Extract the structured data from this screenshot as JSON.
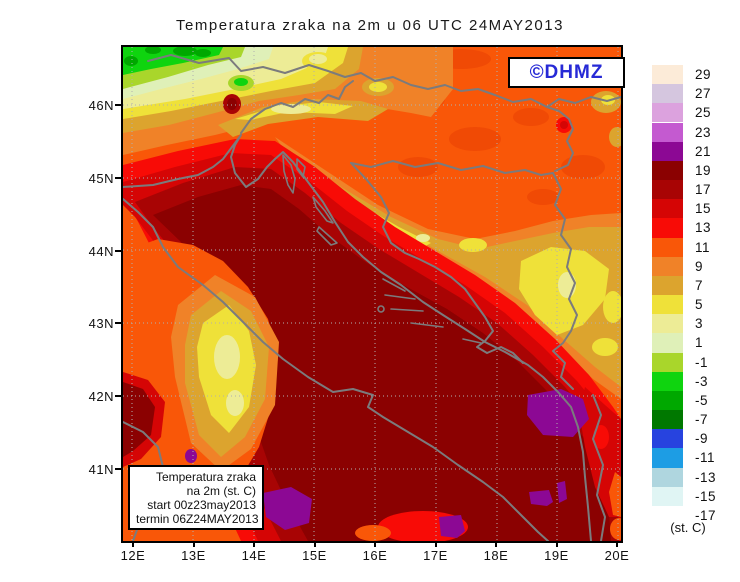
{
  "title": "Temperatura zraka na 2m u 06 UTC 24MAY2013",
  "watermark": {
    "label": "©DHMZ",
    "color": "#2629D6"
  },
  "info_box": {
    "lines": [
      "Temperatura zraka",
      "na 2m (st. C)",
      "start 00z23may2013",
      "termin 06Z24MAY2013"
    ]
  },
  "axes": {
    "x_ticks": [
      "12E",
      "13E",
      "14E",
      "15E",
      "16E",
      "17E",
      "18E",
      "19E",
      "20E"
    ],
    "y_ticks": [
      "46N",
      "45N",
      "44N",
      "43N",
      "42N",
      "41N"
    ]
  },
  "legend": {
    "unit_label": "(st. C)",
    "entries": [
      {
        "label": "29",
        "color": "#FCEBD8"
      },
      {
        "label": "27",
        "color": "#D5C6DF"
      },
      {
        "label": "25",
        "color": "#DCA2DE"
      },
      {
        "label": "23",
        "color": "#C45AD0"
      },
      {
        "label": "21",
        "color": "#8C0894"
      },
      {
        "label": "19",
        "color": "#8B0101"
      },
      {
        "label": "17",
        "color": "#A80404"
      },
      {
        "label": "15",
        "color": "#D50505"
      },
      {
        "label": "13",
        "color": "#F80B06"
      },
      {
        "label": "11",
        "color": "#F95708"
      },
      {
        "label": "9",
        "color": "#F08228"
      },
      {
        "label": "7",
        "color": "#DCA42E"
      },
      {
        "label": "5",
        "color": "#EFE139"
      },
      {
        "label": "3",
        "color": "#EDEC96"
      },
      {
        "label": "1",
        "color": "#DFF0B8"
      },
      {
        "label": "-1",
        "color": "#A9D62B"
      },
      {
        "label": "-3",
        "color": "#0FD40F"
      },
      {
        "label": "-5",
        "color": "#00A800"
      },
      {
        "label": "-7",
        "color": "#007800"
      },
      {
        "label": "-9",
        "color": "#2743DF"
      },
      {
        "label": "-11",
        "color": "#1D9DE4"
      },
      {
        "label": "-13",
        "color": "#AFD6DF"
      },
      {
        "label": "-15",
        "color": "#E0F5F4"
      },
      {
        "label": "-17",
        "color": "#FFFFFF"
      }
    ]
  },
  "map": {
    "base_land_color": "#F95708",
    "sea_core_color": "#8B0101",
    "gridline_color": "#B0B0B0",
    "coastline_color": "#7B7B7D"
  }
}
